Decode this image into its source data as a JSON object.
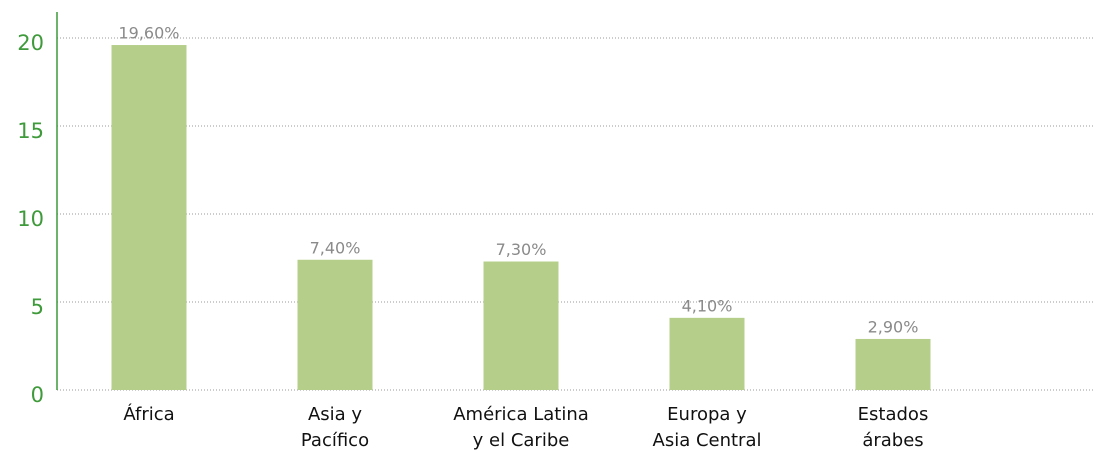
{
  "chart_data": {
    "type": "bar",
    "categories": [
      [
        "África"
      ],
      [
        "Asia y",
        "Pacífico"
      ],
      [
        "América Latina",
        "y el Caribe"
      ],
      [
        "Europa y",
        "Asia Central"
      ],
      [
        "Estados",
        "árabes"
      ]
    ],
    "values": [
      19.6,
      7.4,
      7.3,
      4.1,
      2.9
    ],
    "value_labels": [
      "19,60%",
      "7,40%",
      "7,30%",
      "4,10%",
      "2,90%"
    ],
    "color": "#b5cf8a",
    "ylim": [
      0,
      20
    ],
    "yticks": [
      0,
      5,
      10,
      15,
      20
    ],
    "grid": true
  }
}
